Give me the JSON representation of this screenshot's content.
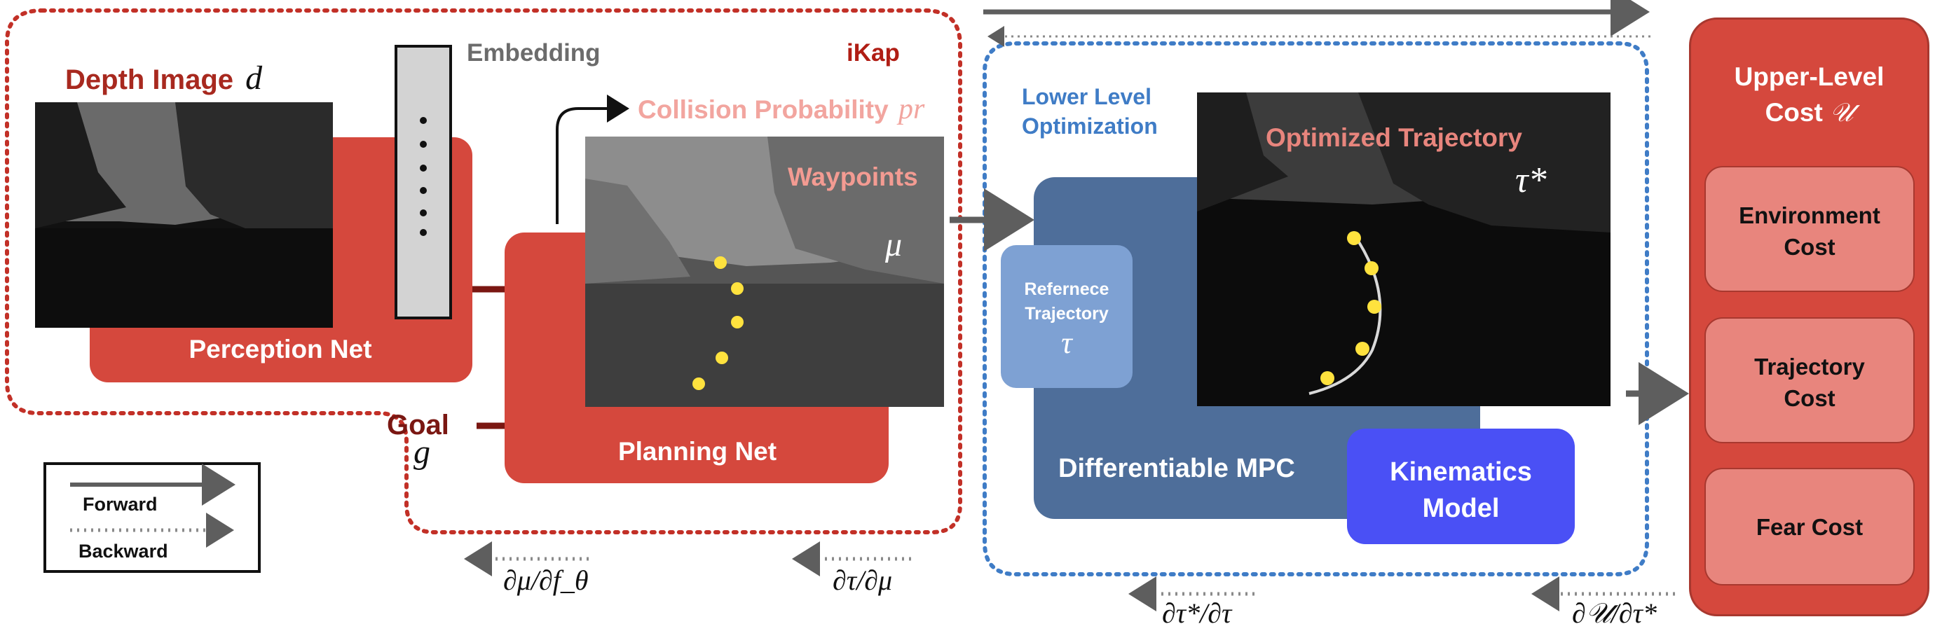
{
  "colors": {
    "red": "#d5483d",
    "blue": "#4e6e9a",
    "light_blue": "#7ea1d3",
    "kin_blue": "#4a50f5",
    "pink": "#e8857d",
    "dotted_red": "#c23027",
    "dotted_blue": "#3f7cc6"
  },
  "perception": {
    "depth_label": "Depth Image",
    "depth_sym": "d",
    "embedding_label": "Embedding",
    "net_label": "Perception Net"
  },
  "planning": {
    "collision_label": "Collision Probability",
    "collision_sym": "pr",
    "waypoints_label": "Waypoints",
    "waypoints_sym": "μ",
    "net_label": "Planning Net",
    "goal_label": "Goal",
    "goal_sym": "g"
  },
  "ikap_label": "iKap",
  "lower": {
    "title_line1": "Lower Level",
    "title_line2": "Optimization",
    "optimized_label": "Optimized Trajectory",
    "tau_star": "τ*",
    "ref_line1": "Refernece",
    "ref_line2": "Trajectory",
    "ref_sym": "τ",
    "mpc_label": "Differentiable MPC",
    "kin_line1": "Kinematics",
    "kin_line2": "Model"
  },
  "upper": {
    "title_line1": "Upper-Level",
    "title_line2": "Cost",
    "title_sym": "𝒰",
    "costs": [
      {
        "line1": "Environment",
        "line2": "Cost"
      },
      {
        "line1": "Trajectory",
        "line2": "Cost"
      },
      {
        "line1": "Fear Cost",
        "line2": ""
      }
    ]
  },
  "legend": {
    "forward": "Forward",
    "backward": "Backward"
  },
  "gradients": {
    "g1": "∂μ/∂f_θ",
    "g2": "∂τ/∂μ",
    "g3": "∂τ*/∂τ",
    "g4": "∂𝒰/∂τ*"
  }
}
